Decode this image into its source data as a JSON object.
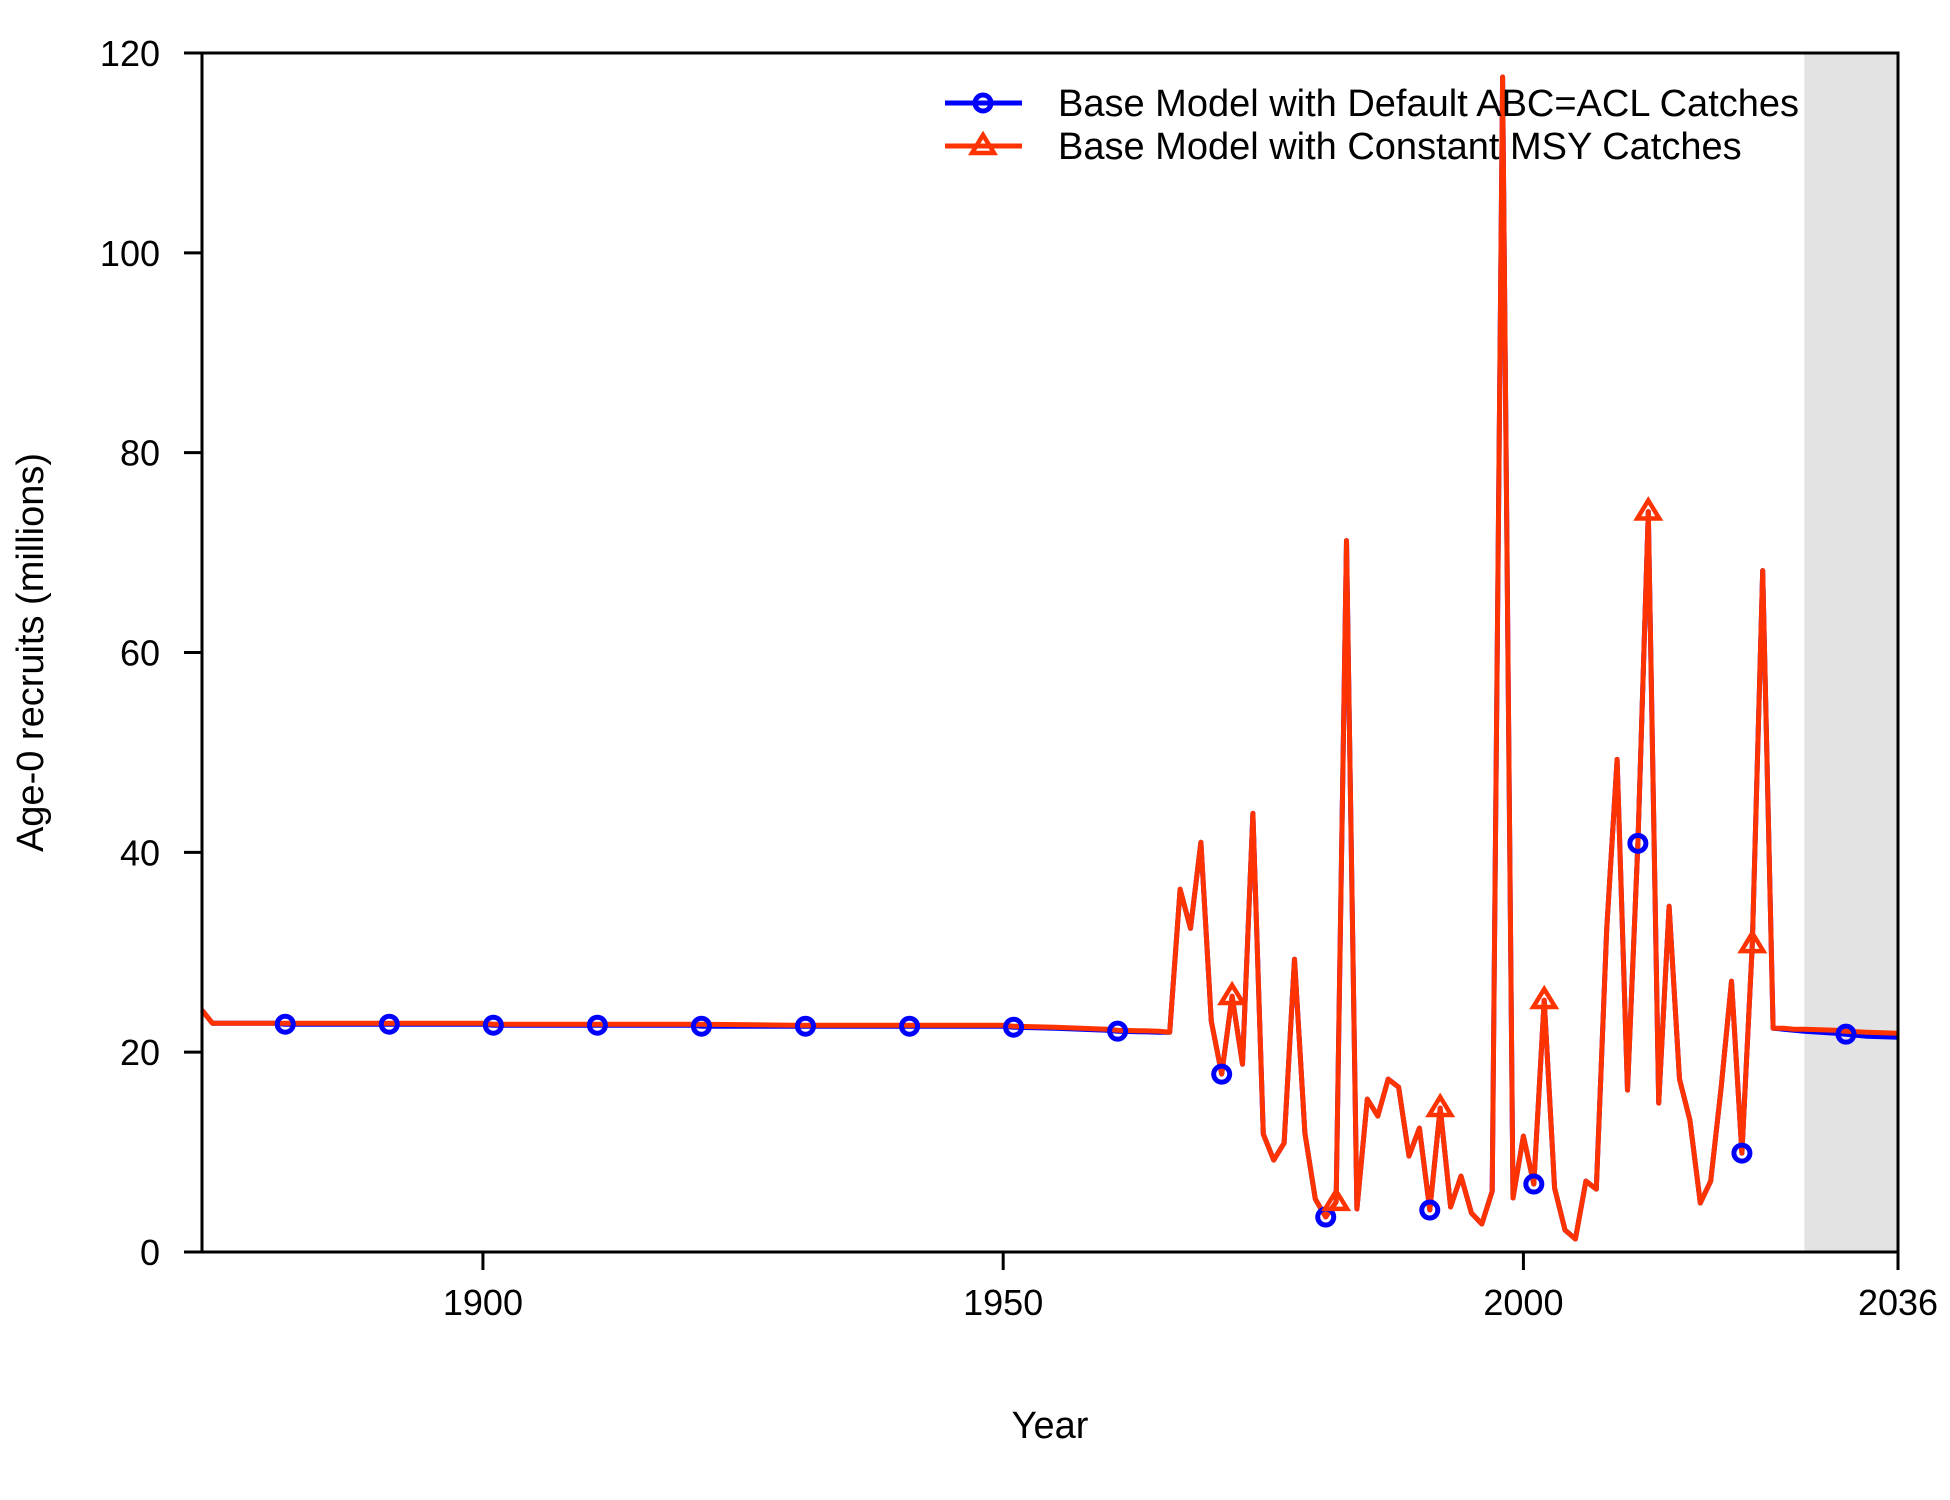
{
  "chart_data": {
    "type": "line",
    "title": "",
    "xlabel": "Year",
    "ylabel": "Age-0 recruits (millions)",
    "xlim": [
      1873,
      2036
    ],
    "ylim": [
      0,
      120
    ],
    "x_ticks": [
      1900,
      1950,
      2000,
      2036
    ],
    "y_ticks": [
      0,
      20,
      40,
      60,
      80,
      100,
      120
    ],
    "grid": false,
    "legend_position": "top-right",
    "projection_start": 2027,
    "projection_shading_color": "#e3e3e3",
    "series": [
      {
        "name": "Base Model with Default ABC=ACL Catches",
        "color": "#0000ff",
        "marker": "circle",
        "x": [
          1873,
          1874,
          1880,
          1881,
          1890,
          1891,
          1900,
          1901,
          1910,
          1911,
          1920,
          1921,
          1930,
          1931,
          1940,
          1941,
          1950,
          1951,
          1955,
          1960,
          1961,
          1965,
          1966,
          1967,
          1968,
          1969,
          1970,
          1971,
          1972,
          1973,
          1974,
          1975,
          1976,
          1977,
          1978,
          1979,
          1980,
          1981,
          1982,
          1983,
          1984,
          1985,
          1986,
          1987,
          1988,
          1989,
          1990,
          1991,
          1992,
          1993,
          1994,
          1995,
          1996,
          1997,
          1998,
          1999,
          2000,
          2001,
          2002,
          2003,
          2004,
          2005,
          2006,
          2007,
          2008,
          2009,
          2010,
          2011,
          2012,
          2013,
          2014,
          2015,
          2016,
          2017,
          2018,
          2019,
          2020,
          2021,
          2022,
          2023,
          2024,
          2025,
          2026,
          2027,
          2030,
          2031,
          2033,
          2036
        ],
        "y": [
          24.2,
          22.9,
          22.9,
          22.8,
          22.8,
          22.8,
          22.8,
          22.7,
          22.7,
          22.7,
          22.7,
          22.6,
          22.6,
          22.6,
          22.6,
          22.6,
          22.6,
          22.5,
          22.4,
          22.2,
          22.1,
          22.0,
          22.0,
          36.3,
          32.4,
          41.0,
          23.1,
          17.8,
          25.6,
          18.8,
          43.9,
          11.8,
          9.2,
          10.9,
          29.3,
          11.9,
          5.3,
          3.5,
          5.0,
          71.2,
          4.3,
          15.3,
          13.6,
          17.3,
          16.5,
          9.6,
          12.4,
          4.2,
          14.4,
          4.5,
          7.6,
          3.9,
          2.8,
          6.1,
          117.6,
          5.4,
          11.6,
          6.8,
          25.2,
          6.4,
          2.2,
          1.3,
          7.1,
          6.3,
          32.3,
          49.3,
          16.2,
          40.9,
          74.1,
          14.9,
          34.6,
          17.3,
          13.2,
          4.9,
          7.1,
          16.4,
          27.1,
          9.9,
          30.8,
          68.2,
          22.4,
          22.3,
          22.2,
          22.1,
          21.9,
          21.8,
          21.6,
          21.5
        ]
      },
      {
        "name": "Base Model with Constant MSY Catches",
        "color": "#ff3300",
        "marker": "triangle",
        "x": [
          1873,
          1874,
          1880,
          1881,
          1890,
          1891,
          1900,
          1901,
          1910,
          1911,
          1920,
          1921,
          1930,
          1931,
          1940,
          1941,
          1950,
          1951,
          1955,
          1960,
          1961,
          1965,
          1966,
          1967,
          1968,
          1969,
          1970,
          1971,
          1972,
          1973,
          1974,
          1975,
          1976,
          1977,
          1978,
          1979,
          1980,
          1981,
          1982,
          1983,
          1984,
          1985,
          1986,
          1987,
          1988,
          1989,
          1990,
          1991,
          1992,
          1993,
          1994,
          1995,
          1996,
          1997,
          1998,
          1999,
          2000,
          2001,
          2002,
          2003,
          2004,
          2005,
          2006,
          2007,
          2008,
          2009,
          2010,
          2011,
          2012,
          2013,
          2014,
          2015,
          2016,
          2017,
          2018,
          2019,
          2020,
          2021,
          2022,
          2023,
          2024,
          2025,
          2026,
          2027,
          2030,
          2031,
          2033,
          2036
        ],
        "y": [
          24.2,
          22.9,
          22.9,
          22.9,
          22.9,
          22.9,
          22.9,
          22.8,
          22.8,
          22.8,
          22.8,
          22.8,
          22.7,
          22.7,
          22.7,
          22.7,
          22.7,
          22.6,
          22.5,
          22.3,
          22.2,
          22.1,
          22.0,
          36.3,
          32.4,
          41.0,
          23.1,
          17.8,
          25.6,
          18.8,
          43.9,
          11.8,
          9.2,
          10.9,
          29.3,
          11.9,
          5.3,
          3.5,
          5.0,
          71.2,
          4.3,
          15.3,
          13.6,
          17.3,
          16.5,
          9.6,
          12.4,
          4.2,
          14.4,
          4.5,
          7.6,
          3.9,
          2.8,
          6.1,
          117.6,
          5.4,
          11.6,
          6.8,
          25.2,
          6.4,
          2.2,
          1.3,
          7.1,
          6.3,
          32.3,
          49.3,
          16.2,
          40.9,
          74.1,
          14.9,
          34.6,
          17.3,
          13.2,
          4.9,
          7.1,
          16.4,
          27.1,
          9.9,
          30.8,
          68.2,
          22.4,
          22.4,
          22.3,
          22.3,
          22.2,
          22.1,
          22.0,
          21.9
        ]
      }
    ]
  }
}
